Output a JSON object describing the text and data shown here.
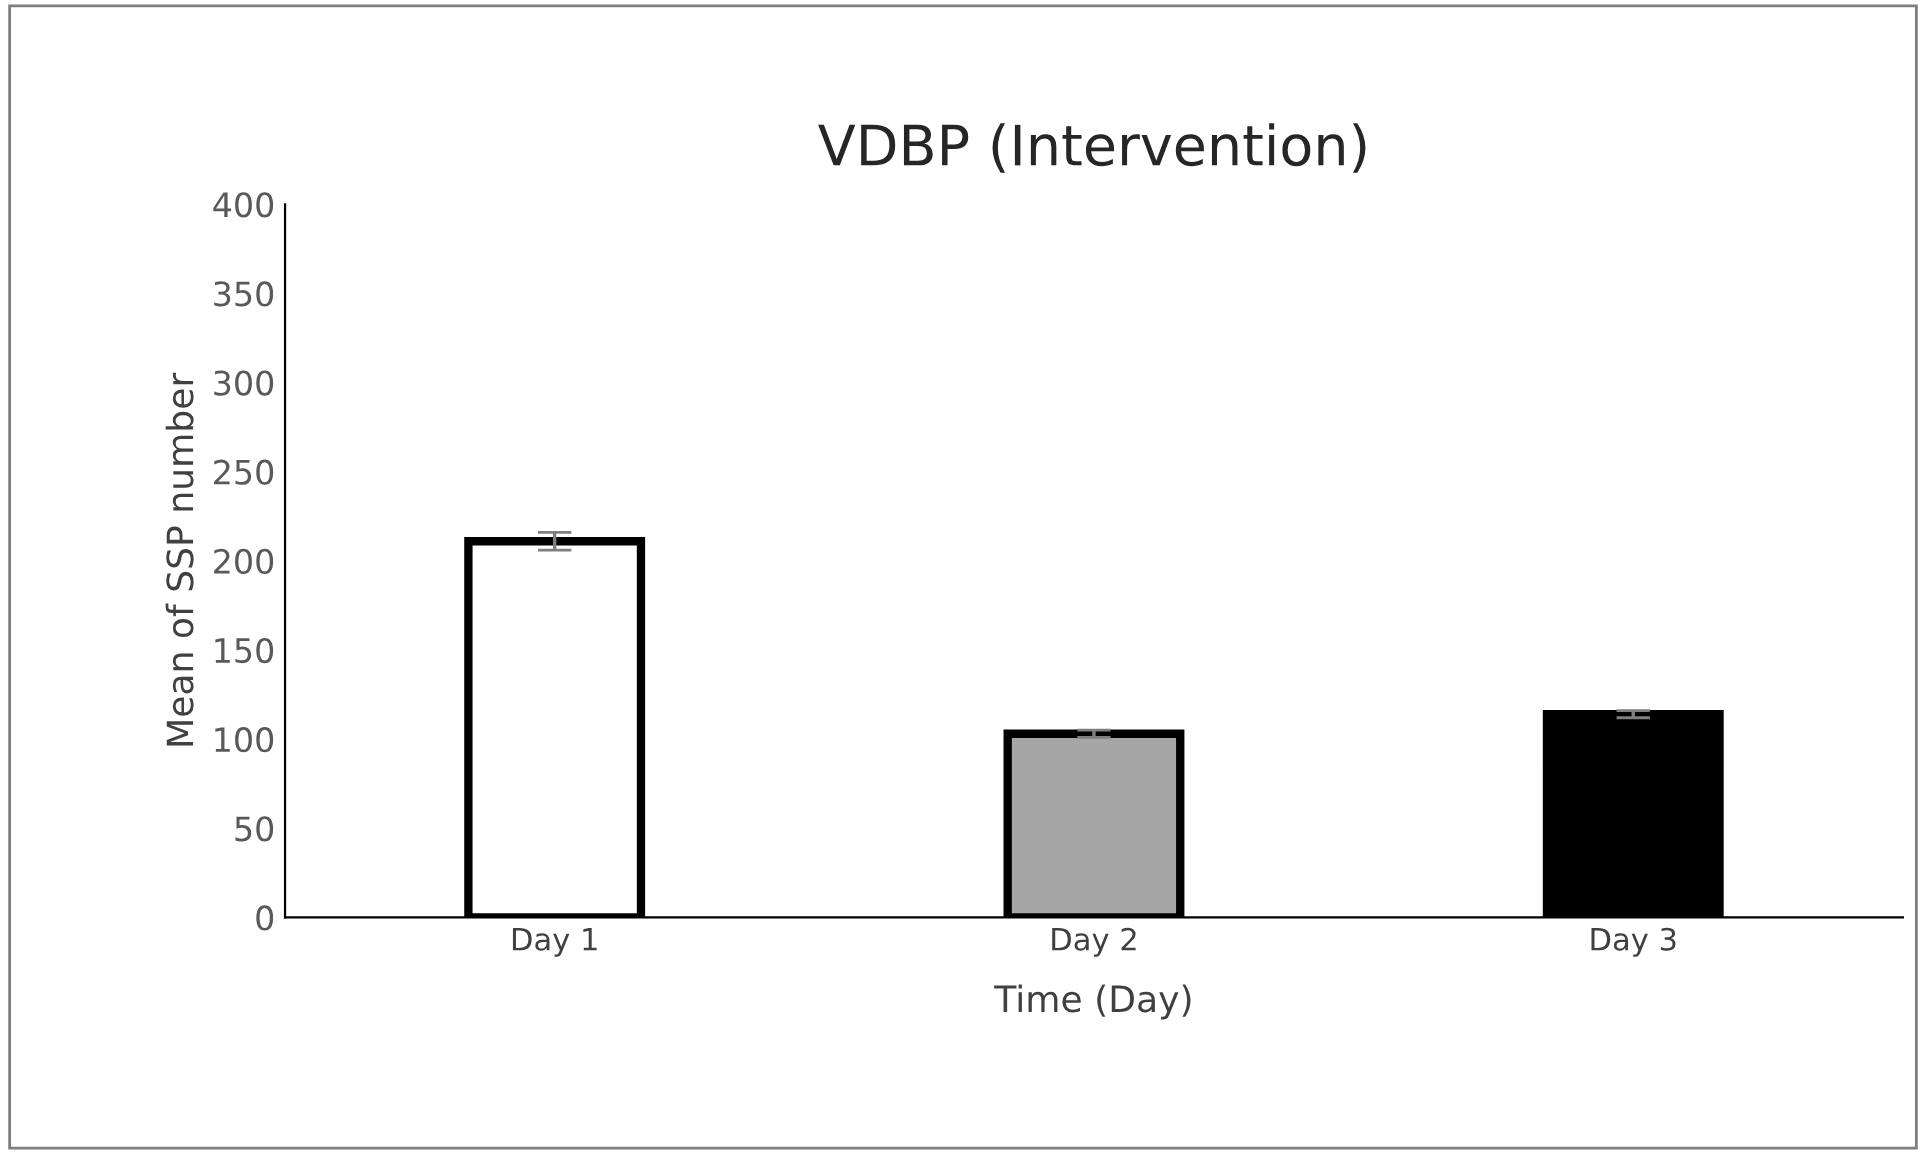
{
  "chart_data": {
    "type": "bar",
    "title": "VDBP (Intervention)",
    "xlabel": "Time (Day)",
    "ylabel": "Mean of SSP number",
    "categories": [
      "Day 1",
      "Day 2",
      "Day 3"
    ],
    "series": [
      {
        "colors": [
          "#ffffff",
          "#a6a6a6",
          "#000000"
        ],
        "values": [
          211,
          103,
          114
        ],
        "errors": [
          5,
          2,
          2
        ]
      }
    ],
    "ylim": [
      0,
      400
    ],
    "yticks": [
      0,
      50,
      100,
      150,
      200,
      250,
      300,
      350,
      400
    ],
    "grid": false
  }
}
